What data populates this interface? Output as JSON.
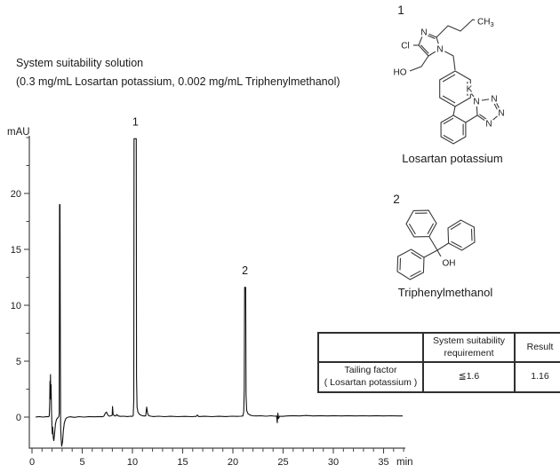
{
  "header": {
    "line1": "System suitability solution",
    "line2": "(0.3 mg/mL Losartan potassium, 0.002 mg/mL Triphenylmethanol)"
  },
  "structures": {
    "losartan": {
      "index_label": "1",
      "caption": "Losartan potassium",
      "atoms": {
        "imidazole_n_top": "N",
        "imidazole_n_right": "N",
        "cl": "Cl",
        "ho": "HO",
        "ch3_main": "CH",
        "ch3_sub": "3",
        "k": "K",
        "tz_n1": "N",
        "tz_n2": "N",
        "tz_n3": "N",
        "tz_n4": "N"
      }
    },
    "triphenylmethanol": {
      "index_label": "2",
      "caption": "Triphenylmethanol",
      "atoms": {
        "oh": "OH"
      }
    }
  },
  "chart_data": {
    "type": "line",
    "title": "",
    "xlabel": "min",
    "ylabel": "mAU",
    "xlim": [
      0,
      37.5
    ],
    "ylim": [
      -2.8,
      25
    ],
    "grid": false,
    "x_major_ticks": [
      0,
      5,
      10,
      15,
      20,
      25,
      30,
      35
    ],
    "x_minor_step": 1,
    "y_major_ticks": [
      0,
      5,
      10,
      15,
      20
    ],
    "y_minor_ticks": [
      2.5,
      7.5,
      12.5,
      17.5,
      22.5,
      25
    ],
    "peaks": [
      {
        "label": "1",
        "time_min": 10.3,
        "apex_mAU": 24.9
      },
      {
        "label": "2",
        "time_min": 21.2,
        "apex_mAU": 11.6
      }
    ],
    "trace_points_t_mAU": [
      [
        0.35,
        0
      ],
      [
        0.7,
        0.05
      ],
      [
        1.1,
        0
      ],
      [
        1.45,
        0.05
      ],
      [
        1.65,
        0.03
      ],
      [
        1.72,
        0.1
      ],
      [
        1.76,
        1.2
      ],
      [
        1.79,
        3.2
      ],
      [
        1.81,
        2.1
      ],
      [
        1.84,
        3.8
      ],
      [
        1.87,
        1.6
      ],
      [
        1.9,
        2.9
      ],
      [
        1.94,
        0.6
      ],
      [
        1.98,
        -0.7
      ],
      [
        2.02,
        -1.5
      ],
      [
        2.06,
        -0.9
      ],
      [
        2.12,
        -1.9
      ],
      [
        2.18,
        -2.1
      ],
      [
        2.26,
        -1.4
      ],
      [
        2.34,
        -0.6
      ],
      [
        2.44,
        -0.2
      ],
      [
        2.56,
        -0.08
      ],
      [
        2.66,
        0.05
      ],
      [
        2.71,
        0.3
      ],
      [
        2.74,
        19
      ],
      [
        2.79,
        19
      ],
      [
        2.82,
        6
      ],
      [
        2.85,
        -0.8
      ],
      [
        2.9,
        -2.0
      ],
      [
        2.96,
        -2.6
      ],
      [
        3.04,
        -2.2
      ],
      [
        3.12,
        -1.2
      ],
      [
        3.22,
        -0.5
      ],
      [
        3.35,
        -0.15
      ],
      [
        3.5,
        -0.03
      ],
      [
        3.8,
        0.03
      ],
      [
        4.2,
        -0.02
      ],
      [
        4.7,
        0.04
      ],
      [
        5.2,
        0
      ],
      [
        5.7,
        0.05
      ],
      [
        6.2,
        0.02
      ],
      [
        6.7,
        0.05
      ],
      [
        7.0,
        0.03
      ],
      [
        7.15,
        0.08
      ],
      [
        7.3,
        0.35
      ],
      [
        7.42,
        0.45
      ],
      [
        7.55,
        0.18
      ],
      [
        7.7,
        0.08
      ],
      [
        7.85,
        0.12
      ],
      [
        7.98,
        0.15
      ],
      [
        8.02,
        0.95
      ],
      [
        8.07,
        0.3
      ],
      [
        8.18,
        0.12
      ],
      [
        8.32,
        0.1
      ],
      [
        8.45,
        0.22
      ],
      [
        8.58,
        0.1
      ],
      [
        8.8,
        0.06
      ],
      [
        9.1,
        0.08
      ],
      [
        9.5,
        0.05
      ],
      [
        9.8,
        0.08
      ],
      [
        10.0,
        0.06
      ],
      [
        10.08,
        0.15
      ],
      [
        10.13,
        1.5
      ],
      [
        10.16,
        24.9
      ],
      [
        10.38,
        24.9
      ],
      [
        10.41,
        3.5
      ],
      [
        10.46,
        0.9
      ],
      [
        10.55,
        0.45
      ],
      [
        10.7,
        0.25
      ],
      [
        10.9,
        0.15
      ],
      [
        11.1,
        0.1
      ],
      [
        11.32,
        0.1
      ],
      [
        11.42,
        0.9
      ],
      [
        11.5,
        0.35
      ],
      [
        11.62,
        0.12
      ],
      [
        11.85,
        0.08
      ],
      [
        12.1,
        0.05
      ],
      [
        12.6,
        0.08
      ],
      [
        13.2,
        0.04
      ],
      [
        13.8,
        0.07
      ],
      [
        14.5,
        0.04
      ],
      [
        15.2,
        0.06
      ],
      [
        15.9,
        0.04
      ],
      [
        16.35,
        0.06
      ],
      [
        16.45,
        0.18
      ],
      [
        16.6,
        0.05
      ],
      [
        17.2,
        0.07
      ],
      [
        17.9,
        0.04
      ],
      [
        18.6,
        0.07
      ],
      [
        19.3,
        0.05
      ],
      [
        19.9,
        0.08
      ],
      [
        20.4,
        0.06
      ],
      [
        20.8,
        0.08
      ],
      [
        21.0,
        0.1
      ],
      [
        21.08,
        0.5
      ],
      [
        21.13,
        2.5
      ],
      [
        21.17,
        11.6
      ],
      [
        21.27,
        11.6
      ],
      [
        21.31,
        2.0
      ],
      [
        21.37,
        0.6
      ],
      [
        21.5,
        0.3
      ],
      [
        21.7,
        0.18
      ],
      [
        21.95,
        0.12
      ],
      [
        22.3,
        0.1
      ],
      [
        22.8,
        0.12
      ],
      [
        23.3,
        0.08
      ],
      [
        23.8,
        0.12
      ],
      [
        24.2,
        0.08
      ],
      [
        24.35,
        0.1
      ],
      [
        24.42,
        -0.5
      ],
      [
        24.48,
        0.35
      ],
      [
        24.55,
        -0.12
      ],
      [
        24.65,
        0.08
      ],
      [
        24.9,
        0.06
      ],
      [
        25.4,
        0.1
      ],
      [
        26,
        0.13
      ],
      [
        26.6,
        0.1
      ],
      [
        27.3,
        0.14
      ],
      [
        28,
        0.1
      ],
      [
        28.7,
        0.13
      ],
      [
        29.4,
        0.1
      ],
      [
        30.1,
        0.13
      ],
      [
        30.8,
        0.1
      ],
      [
        31.5,
        0.13
      ],
      [
        32.2,
        0.1
      ],
      [
        32.9,
        0.12
      ],
      [
        33.6,
        0.1
      ],
      [
        34.3,
        0.13
      ],
      [
        35,
        0.1
      ],
      [
        35.7,
        0.12
      ],
      [
        36.4,
        0.1
      ],
      [
        36.9,
        0.1
      ]
    ]
  },
  "table": {
    "headers": [
      "",
      "System suitability requirement",
      "Result"
    ],
    "rows": [
      {
        "parameter_line1": "Tailing factor",
        "parameter_line2": "( Losartan potassium )",
        "requirement": "≦1.6",
        "result": "1.16"
      }
    ]
  }
}
